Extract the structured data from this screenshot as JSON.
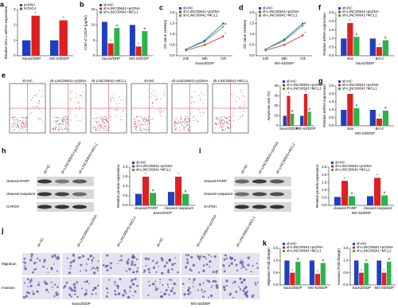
{
  "chart_data": [
    {
      "type": "bar",
      "panel": "a",
      "ylabel": "Relative MCL1 mRNA expression",
      "categories": [
        "Saos2/DDP",
        "MG-63/DDP"
      ],
      "series": [
        {
          "name": "pcDNA",
          "color": "#1f3fbf",
          "values": [
            1,
            1
          ]
        },
        {
          "name": "KCNC4",
          "color": "#e02020",
          "values": [
            2.6,
            2.3
          ],
          "annotations": [
            "*",
            "*"
          ]
        }
      ],
      "ylim": [
        0,
        3
      ],
      "yticks": [
        0,
        1,
        2,
        3
      ]
    },
    {
      "type": "bar",
      "panel": "b",
      "ylabel": "IC50 of CDDP (μg/ml)",
      "categories": [
        "Saos2/DDP",
        "MG-63/DDP"
      ],
      "series": [
        {
          "name": "sh-NC",
          "color": "#1f3fbf",
          "values": [
            11,
            10
          ]
        },
        {
          "name": "sh-LINC00641+pcDNA",
          "color": "#e02020",
          "values": [
            4,
            3
          ],
          "annotations": [
            "*",
            "*"
          ]
        },
        {
          "name": "sh-LINC00641+MCL1",
          "color": "#2db34a",
          "values": [
            9,
            8
          ],
          "annotations": [
            "#",
            "#"
          ]
        }
      ],
      "ylim": [
        0,
        15
      ],
      "yticks": [
        0,
        5,
        10,
        15
      ]
    },
    {
      "type": "line",
      "panel": "c",
      "ylabel": "OD value (450nm)",
      "xlabel": "Saos2/DDP",
      "categories": [
        "24h",
        "48h",
        "72h"
      ],
      "series": [
        {
          "name": "sh-NC",
          "color": "#1f3fbf",
          "values": [
            0.3,
            0.7,
            1.5
          ]
        },
        {
          "name": "sh-LINC00641+pcDNA",
          "color": "#e02020",
          "values": [
            0.25,
            0.5,
            0.9
          ],
          "annotations": [
            null,
            null,
            "*"
          ]
        },
        {
          "name": "sh-LINC00641+MCL1",
          "color": "#2db34a",
          "values": [
            0.3,
            0.65,
            1.35
          ],
          "annotations": [
            null,
            null,
            "#"
          ]
        }
      ],
      "ylim": [
        0,
        2
      ],
      "yticks": [
        {
          "value": 0,
          "label": "0.0"
        },
        {
          "value": 0.5,
          "label": "0.5"
        },
        {
          "value": 1,
          "label": "1.0"
        },
        {
          "value": 1.5,
          "label": "1.5"
        },
        {
          "value": 2,
          "label": "2.0"
        }
      ]
    },
    {
      "type": "line",
      "panel": "d",
      "ylabel": "OD value (450nm)",
      "xlabel": "MG-63/DDP",
      "categories": [
        "24h",
        "48h",
        "72h"
      ],
      "series": [
        {
          "name": "sh-NC",
          "color": "#1f3fbf",
          "values": [
            0.3,
            0.75,
            1.5
          ]
        },
        {
          "name": "sh-LINC00641+pcDNA",
          "color": "#e02020",
          "values": [
            0.25,
            0.5,
            0.95
          ],
          "annotations": [
            null,
            null,
            "*"
          ]
        },
        {
          "name": "sh-LINC00641+MCL1",
          "color": "#2db34a",
          "values": [
            0.3,
            0.7,
            1.4
          ],
          "annotations": [
            null,
            null,
            "#"
          ]
        }
      ],
      "ylim": [
        0,
        2
      ],
      "yticks": [
        {
          "value": 0,
          "label": "0.0"
        },
        {
          "value": 0.5,
          "label": "0.5"
        },
        {
          "value": 1,
          "label": "1.0"
        },
        {
          "value": 1.5,
          "label": "1.5"
        },
        {
          "value": 2,
          "label": "2.0"
        }
      ]
    },
    {
      "type": "bar",
      "panel": "f",
      "ylabel": "Relative mRNA expression",
      "xlabel": "Saos2/DDP",
      "categories": [
        "Bax",
        "Bcl-2"
      ],
      "series": [
        {
          "name": "sh-NC",
          "color": "#1f3fbf",
          "values": [
            1,
            1
          ]
        },
        {
          "name": "sh-LINC00641+pcDNA",
          "color": "#e02020",
          "values": [
            1.9,
            0.5
          ],
          "annotations": [
            "*",
            "*"
          ]
        },
        {
          "name": "sh-LINC00641+MCL1",
          "color": "#2db34a",
          "values": [
            1.1,
            0.9
          ],
          "annotations": [
            "#",
            "#"
          ]
        }
      ],
      "ylim": [
        0,
        2.5
      ],
      "yticks": [
        {
          "value": 0,
          "label": "0.0"
        },
        {
          "value": 0.5,
          "label": "0.5"
        },
        {
          "value": 1,
          "label": "1.0"
        },
        {
          "value": 1.5,
          "label": "1.5"
        },
        {
          "value": 2,
          "label": "2.0"
        },
        {
          "value": 2.5,
          "label": "2.5"
        }
      ]
    },
    {
      "type": "bar",
      "ylabel": "Apoptosis rate (%)",
      "categories": [
        "Saos2/DDP",
        "MG-63/DDP"
      ],
      "series": [
        {
          "name": "sh-NC",
          "color": "#1f3fbf",
          "values": [
            10,
            10
          ]
        },
        {
          "name": "sh-LINC00641+pcDNA",
          "color": "#e02020",
          "values": [
            30,
            32
          ],
          "annotations": [
            "*",
            "*"
          ]
        },
        {
          "name": "sh-LINC00641+MCL1",
          "color": "#2db34a",
          "values": [
            12,
            14
          ],
          "annotations": [
            "#",
            "#"
          ]
        }
      ],
      "ylim": [
        0,
        40
      ],
      "yticks": [
        0,
        10,
        20,
        30,
        40
      ]
    },
    {
      "type": "bar",
      "panel": "g",
      "ylabel": "Relative mRNA expression",
      "xlabel": "MG-63/DDP",
      "categories": [
        "Bax",
        "Bcl-2"
      ],
      "series": [
        {
          "name": "sh-NC",
          "color": "#1f3fbf",
          "values": [
            1,
            1
          ]
        },
        {
          "name": "sh-LINC00641+pcDNA",
          "color": "#e02020",
          "values": [
            2,
            0.45
          ],
          "annotations": [
            "*",
            "*"
          ]
        },
        {
          "name": "sh-LINC00641+MCL1",
          "color": "#2db34a",
          "values": [
            1.1,
            0.95
          ],
          "annotations": [
            "#",
            "#"
          ]
        }
      ],
      "ylim": [
        0,
        2.5
      ],
      "yticks": [
        {
          "value": 0,
          "label": "0.0"
        },
        {
          "value": 0.5,
          "label": "0.5"
        },
        {
          "value": 1,
          "label": "1.0"
        },
        {
          "value": 1.5,
          "label": "1.5"
        },
        {
          "value": 2,
          "label": "2.0"
        },
        {
          "value": 2.5,
          "label": "2.5"
        }
      ]
    },
    {
      "type": "bar",
      "ylabel": "Relative protein expression",
      "xlabel": "Saos2/DDP",
      "categories": [
        "cleaved-PARP",
        "cleaved-caspase3"
      ],
      "series": [
        {
          "name": "sh-NC",
          "color": "#1f3fbf",
          "values": [
            0.6,
            0.7
          ]
        },
        {
          "name": "sh-LINC00641+pcDNA",
          "color": "#e02020",
          "values": [
            1.5,
            1.5
          ],
          "annotations": [
            "*",
            "*"
          ]
        },
        {
          "name": "sh-LINC00641+MCL1",
          "color": "#2db34a",
          "values": [
            0.65,
            0.6
          ],
          "annotations": [
            "#",
            "#"
          ]
        }
      ],
      "ylim": [
        0,
        2
      ],
      "yticks": [
        {
          "value": 0,
          "label": "0.0"
        },
        {
          "value": 0.5,
          "label": "0.5"
        },
        {
          "value": 1,
          "label": "1.0"
        },
        {
          "value": 1.5,
          "label": "1.5"
        },
        {
          "value": 2,
          "label": "2.0"
        }
      ]
    },
    {
      "type": "bar",
      "ylabel": "Relative protein expression",
      "xlabel": "MG-63/DDP",
      "categories": [
        "cleaved-PARP",
        "cleaved-caspase3"
      ],
      "series": [
        {
          "name": "sh-NC",
          "color": "#1f3fbf",
          "values": [
            0.55,
            0.6
          ]
        },
        {
          "name": "sh-LINC00641+pcDNA",
          "color": "#e02020",
          "values": [
            1.6,
            1.8
          ],
          "annotations": [
            "*",
            "*"
          ]
        },
        {
          "name": "sh-LINC00641+MCL1",
          "color": "#2db34a",
          "values": [
            0.6,
            0.65
          ],
          "annotations": [
            "#",
            "#"
          ]
        }
      ],
      "ylim": [
        0,
        2.5
      ],
      "yticks": [
        {
          "value": 0,
          "label": "0.0"
        },
        {
          "value": 0.5,
          "label": "0.5"
        },
        {
          "value": 1,
          "label": "1.0"
        },
        {
          "value": 1.5,
          "label": "1.5"
        },
        {
          "value": 2,
          "label": "2.0"
        },
        {
          "value": 2.5,
          "label": "2.5"
        }
      ]
    },
    {
      "type": "bar",
      "panel": "k",
      "ylabel": "Migration (Fold change)",
      "categories": [
        "Saos2/DDP",
        "MG-63/DDP"
      ],
      "series": [
        {
          "name": "sh-NC",
          "color": "#1f3fbf",
          "values": [
            1,
            1
          ]
        },
        {
          "name": "sh-LINC00641+pcDNA",
          "color": "#e02020",
          "values": [
            0.5,
            0.45
          ],
          "annotations": [
            "*",
            "*"
          ]
        },
        {
          "name": "sh-LINC00641+MCL1",
          "color": "#2db34a",
          "values": [
            0.95,
            0.9
          ],
          "annotations": [
            "#",
            "#"
          ]
        }
      ],
      "ylim": [
        0,
        1.5
      ],
      "yticks": [
        {
          "value": 0,
          "label": "0.0"
        },
        {
          "value": 0.5,
          "label": "0.5"
        },
        {
          "value": 1,
          "label": "1.0"
        },
        {
          "value": 1.5,
          "label": "1.5"
        }
      ]
    },
    {
      "type": "bar",
      "ylabel": "Invasion (Fold change)",
      "categories": [
        "Saos2/DDP",
        "MG-63/DDP"
      ],
      "series": [
        {
          "name": "sh-NC",
          "color": "#1f3fbf",
          "values": [
            1,
            1
          ]
        },
        {
          "name": "sh-LINC00641+pcDNA",
          "color": "#e02020",
          "values": [
            0.5,
            0.5
          ],
          "annotations": [
            "*",
            "*"
          ]
        },
        {
          "name": "sh-LINC00641+MCL1",
          "color": "#2db34a",
          "values": [
            0.9,
            0.95
          ],
          "annotations": [
            "#",
            "#"
          ]
        }
      ],
      "ylim": [
        0,
        1.5
      ],
      "yticks": [
        {
          "value": 0,
          "label": "0.0"
        },
        {
          "value": 0.5,
          "label": "0.5"
        },
        {
          "value": 1,
          "label": "1.0"
        },
        {
          "value": 1.5,
          "label": "1.5"
        }
      ]
    }
  ],
  "figure": {
    "e_flow": {
      "panel": "e",
      "labels": [
        "sh-NC",
        "sh-LINC00641+pcDNA",
        "sh-LINC00641+MCL1",
        "sh-NC",
        "sh-LINC00641+pcDNA",
        "sh-LINC00641+MCL1"
      ]
    },
    "h_blot": {
      "panel": "h",
      "columns": [
        "sh-NC",
        "sh-LINC00641+pcDNA",
        "sh-LINC00641+MCL1"
      ],
      "rows": [
        "cleaved-PARP",
        "cleaved-caspase3",
        "GAPDH"
      ]
    },
    "i_blot": {
      "panel": "i",
      "columns": [
        "sh-NC",
        "sh-LINC00641+pcDNA",
        "sh-LINC00641+MCL1"
      ],
      "rows": [
        "cleaved-PARP",
        "cleaved-caspase3",
        "GAPDH"
      ]
    },
    "j_images": {
      "panel": "j",
      "columns": [
        "sh-NC",
        "sh-LINC00641+pcDNA",
        "sh-LINC00641+MCL1",
        "sh-NC",
        "sh-LINC00641+pcDNA",
        "sh-LINC00641+MCL1"
      ],
      "rows": [
        "Migration",
        "Invasion"
      ],
      "groups": [
        "Saos2/DDP",
        "MG-63/DDP"
      ]
    }
  }
}
